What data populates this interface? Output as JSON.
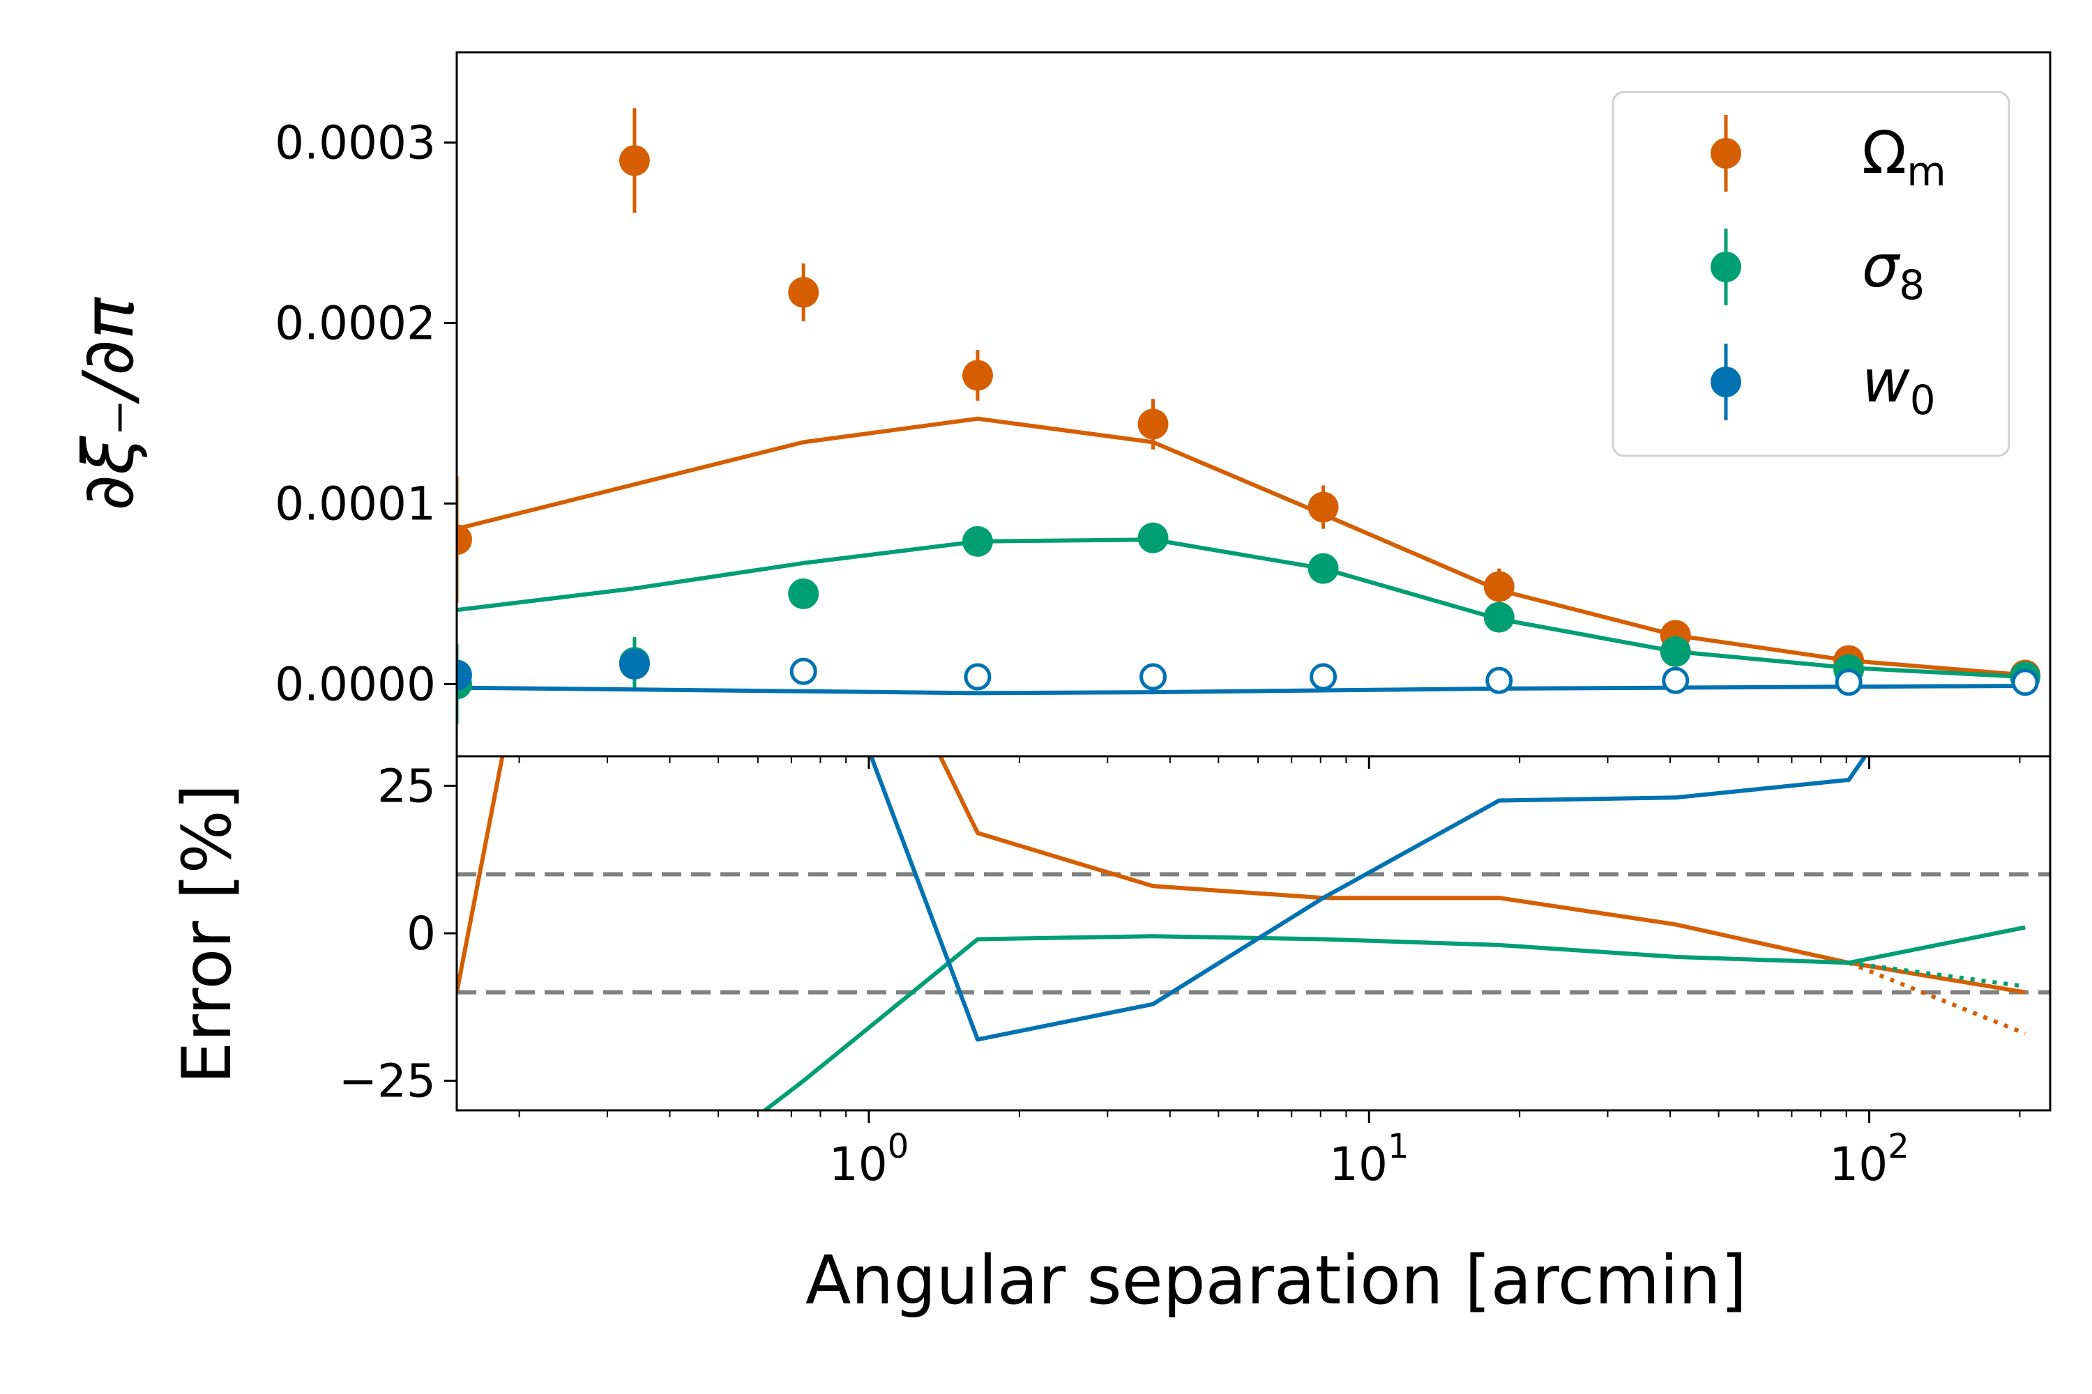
{
  "colors": {
    "omega_m": "#d55e00",
    "sigma_8": "#009e73",
    "w_0": "#0072b2",
    "reference": "#808080"
  },
  "chart_data": [
    {
      "panel": "top",
      "type": "scatter",
      "ylabel": "∂ξ₋/∂π",
      "xlabel": "",
      "x_scale": "log",
      "xlim": [
        0.15,
        230
      ],
      "ylim": [
        -4e-05,
        0.00035
      ],
      "yticks": [
        0.0,
        0.0001,
        0.0002,
        0.0003
      ],
      "yticklabels": [
        "0.0000",
        "0.0001",
        "0.0002",
        "0.0003"
      ],
      "legend": {
        "position": "top-right",
        "entries": [
          {
            "symbol": "Ω",
            "sub": "m"
          },
          {
            "symbol": "σ",
            "sub": "8"
          },
          {
            "symbol": "w",
            "sub": "0"
          }
        ]
      },
      "series": [
        {
          "key": "omega_m",
          "points": [
            {
              "x": 0.15,
              "y": 8e-05,
              "err": 3.5e-05
            },
            {
              "x": 0.34,
              "y": 0.00029,
              "err": 2.9e-05
            },
            {
              "x": 0.74,
              "y": 0.000217,
              "err": 1.6e-05
            },
            {
              "x": 1.65,
              "y": 0.000171,
              "err": 1.4e-05
            },
            {
              "x": 3.7,
              "y": 0.000144,
              "err": 1.4e-05
            },
            {
              "x": 8.1,
              "y": 9.8e-05,
              "err": 1.2e-05
            },
            {
              "x": 18.2,
              "y": 5.4e-05,
              "err": 1e-05
            },
            {
              "x": 41,
              "y": 2.7e-05,
              "err": 5e-06
            },
            {
              "x": 91,
              "y": 1.3e-05,
              "err": 3e-06
            },
            {
              "x": 205,
              "y": 5e-06,
              "err": 1e-06
            }
          ],
          "model_x": [
            0.15,
            0.74,
            1.65,
            3.7,
            8.1,
            18.2,
            41,
            91,
            205
          ],
          "model_y": [
            8.6e-05,
            0.000134,
            0.000147,
            0.000134,
            9.4e-05,
            5.2e-05,
            2.7e-05,
            1.3e-05,
            5e-06
          ]
        },
        {
          "key": "sigma_8",
          "points": [
            {
              "x": 0.15,
              "y": 0.0,
              "err": 2.2e-05
            },
            {
              "x": 0.34,
              "y": 1.2e-05,
              "err": 1.4e-05
            },
            {
              "x": 0.74,
              "y": 5e-05,
              "err": 3e-06
            },
            {
              "x": 1.65,
              "y": 7.9e-05,
              "err": 4e-06
            },
            {
              "x": 3.7,
              "y": 8.1e-05,
              "err": 6e-06
            },
            {
              "x": 8.1,
              "y": 6.4e-05,
              "err": 7e-06
            },
            {
              "x": 18.2,
              "y": 3.7e-05,
              "err": 4e-06
            },
            {
              "x": 41,
              "y": 1.8e-05,
              "err": 2e-06
            },
            {
              "x": 91,
              "y": 8e-06,
              "err": 1e-06
            },
            {
              "x": 205,
              "y": 4e-06,
              "err": 1e-06
            }
          ],
          "model_x": [
            0.15,
            0.34,
            0.74,
            1.65,
            3.7,
            8.1,
            18.2,
            41,
            91,
            205
          ],
          "model_y": [
            4.1e-05,
            5.3e-05,
            6.7e-05,
            7.9e-05,
            8e-05,
            6.4e-05,
            3.6e-05,
            1.8e-05,
            9e-06,
            4e-06
          ]
        },
        {
          "key": "w_0",
          "points": [
            {
              "x": 0.15,
              "y": 5e-06,
              "err": 3e-06,
              "open": false
            },
            {
              "x": 0.34,
              "y": 1.1e-05,
              "err": 4e-06,
              "open": false
            },
            {
              "x": 0.74,
              "y": 7e-06,
              "err": 2e-06,
              "open": true
            },
            {
              "x": 1.65,
              "y": 4e-06,
              "err": 2e-06,
              "open": true
            },
            {
              "x": 3.7,
              "y": 4e-06,
              "err": 2e-06,
              "open": true
            },
            {
              "x": 8.1,
              "y": 4e-06,
              "err": 2e-06,
              "open": true
            },
            {
              "x": 18.2,
              "y": 2e-06,
              "err": 1e-06,
              "open": true
            },
            {
              "x": 41,
              "y": 2e-06,
              "err": 1e-06,
              "open": true
            },
            {
              "x": 91,
              "y": 1e-06,
              "err": 1e-06,
              "open": true
            },
            {
              "x": 205,
              "y": 1e-06,
              "err": 1e-06,
              "open": true
            }
          ],
          "model_x": [
            0.15,
            0.74,
            1.65,
            3.7,
            8.1,
            18.2,
            41,
            91,
            205
          ],
          "model_y": [
            -2e-06,
            -4e-06,
            -5e-06,
            -4.5e-06,
            -3.5e-06,
            -2.5e-06,
            -2e-06,
            -1.5e-06,
            -1e-06
          ]
        }
      ]
    },
    {
      "panel": "bottom",
      "type": "line",
      "ylabel": "Error [%]",
      "xlabel": "Angular separation [arcmin]",
      "x_scale": "log",
      "xlim": [
        0.15,
        230
      ],
      "ylim": [
        -30,
        30
      ],
      "yticks": [
        -25,
        0,
        25
      ],
      "yticklabels": [
        "−25",
        "0",
        "25"
      ],
      "xticks": [
        1,
        10,
        100
      ],
      "xtick_base": "10",
      "xtick_exponents": [
        "0",
        "1",
        "2"
      ],
      "reference_lines": [
        10,
        -10
      ],
      "series": [
        {
          "key": "omega_m",
          "x": [
            0.15,
            0.19,
            1.3,
            1.65,
            3.7,
            8.1,
            18.2,
            41,
            91,
            205
          ],
          "y": [
            -10,
            35,
            35,
            17,
            8,
            6,
            6,
            1.5,
            -5,
            -10
          ],
          "dotted_x": [
            91,
            205
          ],
          "dotted_y": [
            -5,
            -17
          ]
        },
        {
          "key": "sigma_8",
          "x": [
            0.62,
            0.74,
            1.65,
            3.7,
            8.1,
            18.2,
            41,
            91,
            205
          ],
          "y": [
            -30,
            -25,
            -1,
            -0.5,
            -1,
            -2,
            -4,
            -5,
            1
          ],
          "dotted_x": [
            91,
            205
          ],
          "dotted_y": [
            -5,
            -9
          ]
        },
        {
          "key": "w_0",
          "x": [
            0.96,
            1.65,
            3.7,
            8.1,
            18.2,
            41,
            91,
            100
          ],
          "y": [
            35,
            -18,
            -12,
            6,
            22.5,
            23,
            26,
            31
          ],
          "dotted_x": [],
          "dotted_y": []
        }
      ]
    }
  ]
}
